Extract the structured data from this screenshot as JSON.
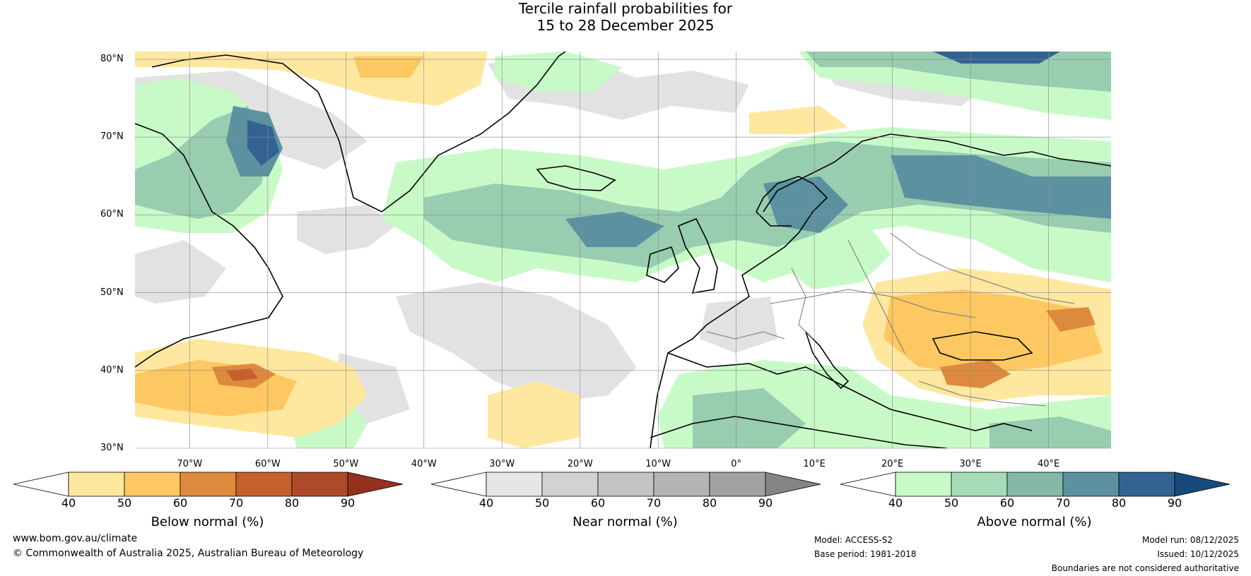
{
  "title": {
    "line1": "Tercile rainfall probabilities for",
    "line2": "15 to 28 December 2025"
  },
  "map": {
    "lat_labels": [
      "80°N",
      "70°N",
      "60°N",
      "50°N",
      "40°N",
      "30°N"
    ],
    "lat_values": [
      80,
      70,
      60,
      50,
      40,
      30
    ],
    "lon_labels": [
      "70°W",
      "60°W",
      "50°W",
      "40°W",
      "30°W",
      "20°W",
      "10°W",
      "0°",
      "10°E",
      "20°E",
      "30°E",
      "40°E"
    ],
    "lon_values": [
      -70,
      -60,
      -50,
      -40,
      -30,
      -20,
      -10,
      0,
      10,
      20,
      30,
      40
    ],
    "lat_range": [
      30,
      81
    ],
    "lon_range": [
      -77,
      48
    ]
  },
  "colorbars": [
    {
      "label": "Below normal (%)",
      "ticks": [
        "40",
        "50",
        "60",
        "70",
        "80",
        "90"
      ],
      "colors": [
        "#ffffff",
        "#fee8a0",
        "#fdc862",
        "#dd8a3e",
        "#c6602e",
        "#ae4a2a",
        "#95301e"
      ]
    },
    {
      "label": "Near normal (%)",
      "ticks": [
        "40",
        "50",
        "60",
        "70",
        "80",
        "90"
      ],
      "colors": [
        "#ffffff",
        "#e6e6e6",
        "#d2d2d2",
        "#c4c4c4",
        "#b4b4b4",
        "#a2a2a2",
        "#858585"
      ]
    },
    {
      "label": "Above normal (%)",
      "ticks": [
        "40",
        "50",
        "60",
        "70",
        "80",
        "90"
      ],
      "colors": [
        "#ffffff",
        "#c8fac8",
        "#a6dbb8",
        "#86b8a8",
        "#5c92a0",
        "#326292",
        "#174a7c"
      ]
    }
  ],
  "footer": {
    "website": "www.bom.gov.au/climate",
    "copyright": "© Commonwealth of Australia 2025, Australian Bureau of Meteorology",
    "model": "Model: ACCESS-S2",
    "base_period": "Base period: 1981-2018",
    "model_run": "Model run: 08/12/2025",
    "issued": "Issued: 10/12/2025",
    "disclaimer": "Boundaries are not considered authoritative"
  }
}
